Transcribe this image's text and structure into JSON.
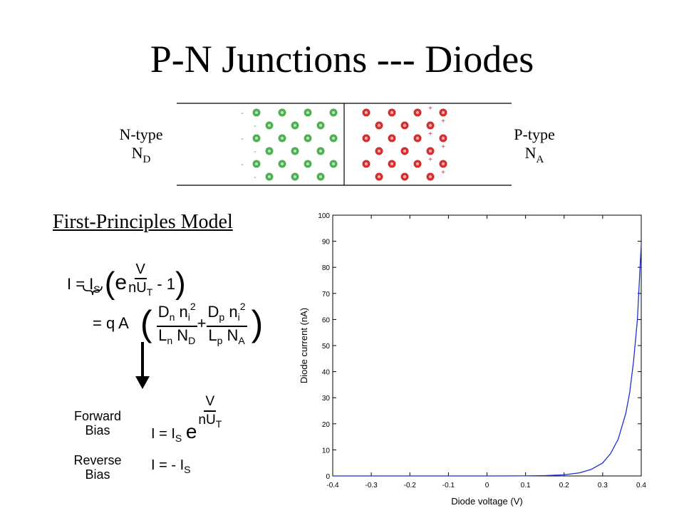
{
  "title": "P-N Junctions --- Diodes",
  "junction": {
    "n_label": "N-type",
    "n_sub_main": "N",
    "n_sub": "D",
    "p_label": "P-type",
    "p_sub_main": "N",
    "p_sub": "A",
    "n_color": "#4caf50",
    "p_color": "#d32f2f",
    "minus": "-",
    "plus": "+"
  },
  "model_heading": "First-Principles Model",
  "equation": {
    "I": "I = I",
    "s": "S",
    "e": "e",
    "V": "V",
    "nU": "nU",
    "T": "T",
    "minus_one": "- 1",
    "eq_qA": "= q A",
    "Dn": "D",
    "n": "n",
    "ni": "n",
    "i": "i",
    "two": "2",
    "Ln": "L",
    "ND": "N",
    "D": "D",
    "plus": "+",
    "Dp": "D",
    "p": "p",
    "Lp": "L",
    "NA": "N",
    "A": "A"
  },
  "bias": {
    "forward_line1": "Forward",
    "forward_line2": "Bias",
    "reverse_line1": "Reverse",
    "reverse_line2": "Bias",
    "forward_eq": "I = I",
    "reverse_eq": "I = - I",
    "s": "S",
    "e": "e",
    "V": "V",
    "nU": "nU",
    "T": "T"
  },
  "chart_data": {
    "type": "line",
    "xlabel": "Diode voltage (V)",
    "ylabel": "Diode current (nA)",
    "xlim": [
      -0.4,
      0.4
    ],
    "ylim": [
      0,
      100
    ],
    "xticks": [
      -0.4,
      -0.3,
      -0.2,
      -0.1,
      0,
      0.1,
      0.2,
      0.3,
      0.4
    ],
    "yticks": [
      0,
      10,
      20,
      30,
      40,
      50,
      60,
      70,
      80,
      90,
      100
    ],
    "grid": false,
    "series": [
      {
        "color": "#1f2fd0",
        "x": [
          -0.4,
          -0.3,
          -0.2,
          -0.1,
          0.0,
          0.1,
          0.15,
          0.2,
          0.24,
          0.27,
          0.3,
          0.32,
          0.34,
          0.36,
          0.37,
          0.38,
          0.39,
          0.4
        ],
        "y": [
          0,
          0,
          0,
          0,
          0,
          0.04,
          0.15,
          0.45,
          1.2,
          2.5,
          5.0,
          8.5,
          14,
          24,
          32,
          44,
          60,
          89
        ]
      }
    ]
  }
}
